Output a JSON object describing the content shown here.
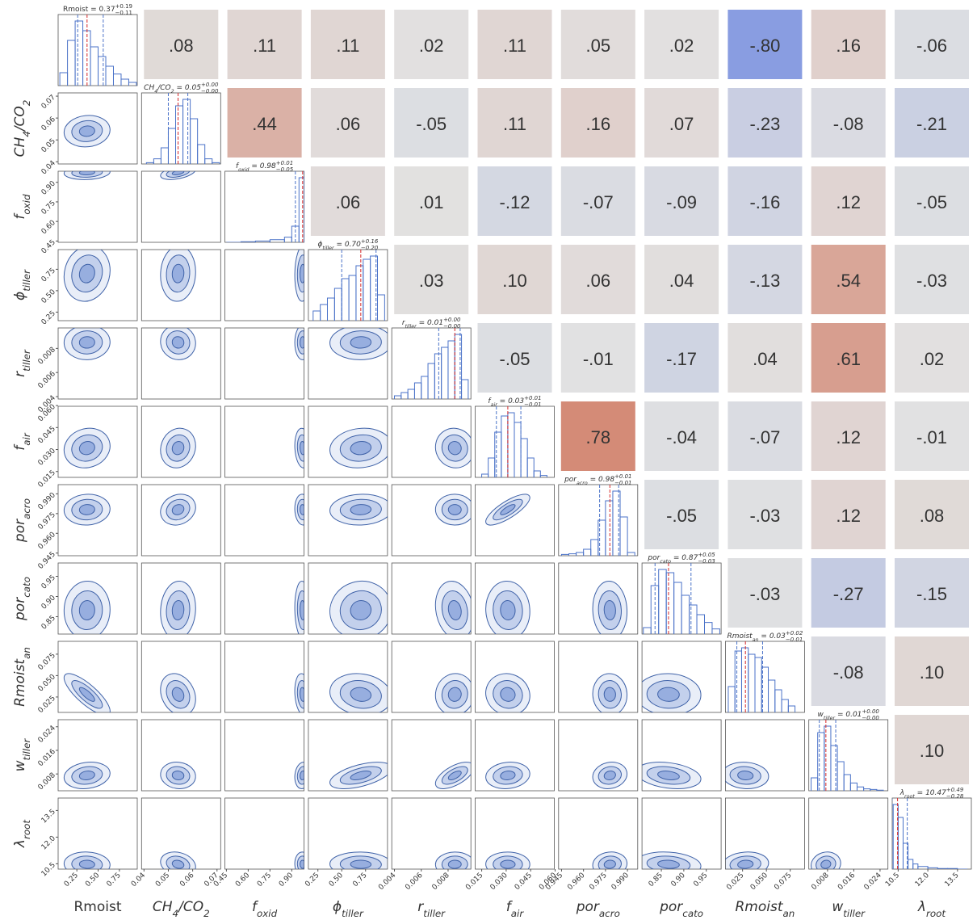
{
  "chart_data": {
    "type": "corner",
    "equals": " = ",
    "colormap": [
      "#5a78dc",
      "#dddddd",
      "#c85a3c"
    ],
    "hist_ylim": [
      0,
      110
    ],
    "line_color": "#4a72c8",
    "median_color": "#d62728",
    "parameters": [
      {
        "label": [
          {
            "t": "Rmoist"
          }
        ],
        "italic": false,
        "median": 0.37,
        "median_label": "0.37",
        "plus": 0.19,
        "plus_label": "+0.19",
        "minus": 0.11,
        "minus_label": "−0.11",
        "xlim": [
          0.03,
          0.96
        ],
        "ticks": [
          0.25,
          {
            "value": 0.5,
            "label": "0.50"
          },
          0.75
        ],
        "bins": [
          0.05,
          0.14,
          0.23,
          0.32,
          0.41,
          0.5,
          0.59,
          0.68,
          0.77,
          0.86,
          0.95
        ],
        "counts": [
          20,
          70,
          100,
          85,
          60,
          45,
          30,
          18,
          10,
          5
        ]
      },
      {
        "label": [
          {
            "t": "CH"
          },
          {
            "sub": "4"
          },
          {
            "t": "/CO"
          },
          {
            "sub": "2"
          }
        ],
        "italic": true,
        "median": 0.054,
        "median_label": "0.05",
        "plus": 0.004,
        "plus_label": "+0.00",
        "minus": 0.004,
        "minus_label": "−0.00",
        "xlim": [
          0.039,
          0.0715
        ],
        "ticks": [
          0.04,
          0.05,
          0.06,
          0.07
        ],
        "bins": [
          0.041,
          0.044,
          0.047,
          0.05,
          0.053,
          0.056,
          0.059,
          0.062,
          0.065,
          0.068,
          0.071
        ],
        "counts": [
          2,
          8,
          25,
          55,
          90,
          100,
          70,
          30,
          8,
          2
        ]
      },
      {
        "label": [
          {
            "t": "f"
          },
          {
            "sub": "oxid"
          }
        ],
        "italic": true,
        "median": 0.975,
        "median_label": "0.98",
        "plus": 0.01,
        "plus_label": "+0.01",
        "minus": 0.05,
        "minus_label": "−0.05",
        "xlim": [
          0.44,
          0.985
        ],
        "ticks": [
          0.45,
          {
            "value": 0.6,
            "label": "0.60"
          },
          0.75,
          {
            "value": 0.9,
            "label": "0.90"
          }
        ],
        "bins": [
          0.45,
          0.55,
          0.65,
          0.75,
          0.85,
          0.9,
          0.95,
          0.985
        ],
        "counts": [
          0,
          1,
          2,
          4,
          8,
          25,
          100
        ]
      },
      {
        "label": [
          {
            "t": "ϕ"
          },
          {
            "sub": "tiller"
          }
        ],
        "italic": true,
        "median": 0.7,
        "median_label": "0.70",
        "plus": 0.16,
        "plus_label": "+0.16",
        "minus": 0.2,
        "minus_label": "−0.20",
        "xlim": [
          0.15,
          0.98
        ],
        "ticks": [
          0.25,
          {
            "value": 0.5,
            "label": "0.50"
          },
          0.75
        ],
        "bins": [
          0.2,
          0.275,
          0.35,
          0.425,
          0.5,
          0.575,
          0.65,
          0.725,
          0.8,
          0.875,
          0.95
        ],
        "counts": [
          15,
          25,
          35,
          50,
          65,
          70,
          85,
          95,
          100,
          40
        ]
      },
      {
        "label": [
          {
            "t": "r"
          },
          {
            "sub": "tiller"
          }
        ],
        "italic": true,
        "median": 0.0085,
        "median_label": "0.01",
        "plus": 0.0004,
        "plus_label": "+0.00",
        "minus": 0.0012,
        "minus_label": "−0.00",
        "xlim": [
          0.0038,
          0.0097
        ],
        "ticks": [
          0.004,
          0.006,
          0.008
        ],
        "bins": [
          0.004,
          0.0045,
          0.005,
          0.0055,
          0.006,
          0.0065,
          0.007,
          0.0075,
          0.008,
          0.0085,
          0.009,
          0.0095
        ],
        "counts": [
          5,
          10,
          15,
          25,
          35,
          55,
          70,
          80,
          90,
          100,
          30
        ]
      },
      {
        "label": [
          {
            "t": "f"
          },
          {
            "sub": "air"
          }
        ],
        "italic": true,
        "median": 0.031,
        "median_label": "0.03",
        "plus": 0.008,
        "plus_label": "+0.01",
        "minus": 0.007,
        "minus_label": "−0.01",
        "xlim": [
          0.011,
          0.0595
        ],
        "ticks": [
          0.015,
          {
            "value": 0.03,
            "label": "0.030"
          },
          0.045,
          {
            "value": 0.06,
            "label": "0.060"
          }
        ],
        "bins": [
          0.015,
          0.019,
          0.023,
          0.027,
          0.031,
          0.035,
          0.039,
          0.043,
          0.047,
          0.051,
          0.055
        ],
        "counts": [
          5,
          30,
          70,
          95,
          100,
          85,
          60,
          30,
          10,
          3
        ]
      },
      {
        "label": [
          {
            "t": "por"
          },
          {
            "sub": "acro"
          }
        ],
        "italic": true,
        "median": 0.978,
        "median_label": "0.98",
        "plus": 0.006,
        "plus_label": "+0.01",
        "minus": 0.007,
        "minus_label": "−0.01",
        "xlim": [
          0.943,
          0.997
        ],
        "ticks": [
          0.945,
          {
            "value": 0.96,
            "label": "0.960"
          },
          0.975,
          {
            "value": 0.99,
            "label": "0.990"
          }
        ],
        "bins": [
          0.945,
          0.95,
          0.955,
          0.96,
          0.965,
          0.97,
          0.975,
          0.98,
          0.985,
          0.99,
          0.995
        ],
        "counts": [
          2,
          3,
          5,
          10,
          25,
          55,
          85,
          100,
          60,
          5
        ]
      },
      {
        "label": [
          {
            "t": "por"
          },
          {
            "sub": "cato"
          }
        ],
        "italic": true,
        "median": 0.866,
        "median_label": "0.87",
        "plus": 0.05,
        "plus_label": "+0.05",
        "minus": 0.03,
        "minus_label": "−0.03",
        "xlim": [
          0.807,
          0.983
        ],
        "ticks": [
          0.85,
          {
            "value": 0.9,
            "label": "0.90"
          },
          0.95
        ],
        "bins": [
          0.81,
          0.827,
          0.844,
          0.861,
          0.878,
          0.895,
          0.912,
          0.929,
          0.946,
          0.963,
          0.98
        ],
        "counts": [
          10,
          75,
          100,
          95,
          80,
          60,
          45,
          30,
          18,
          8
        ]
      },
      {
        "label": [
          {
            "t": "Rmoist"
          },
          {
            "sub": "an"
          }
        ],
        "italic": true,
        "median": 0.028,
        "median_label": "0.03",
        "plus": 0.018,
        "plus_label": "+0.02",
        "minus": 0.009,
        "minus_label": "−0.01",
        "xlim": [
          0.007,
          0.09
        ],
        "ticks": [
          0.025,
          {
            "value": 0.05,
            "label": "0.050"
          },
          0.075
        ],
        "bins": [
          0.01,
          0.017,
          0.024,
          0.031,
          0.038,
          0.045,
          0.052,
          0.059,
          0.066,
          0.073,
          0.08
        ],
        "counts": [
          40,
          95,
          100,
          90,
          85,
          70,
          50,
          35,
          20,
          10
        ]
      },
      {
        "label": [
          {
            "t": "w"
          },
          {
            "sub": "tiller"
          }
        ],
        "italic": true,
        "median": 0.0075,
        "median_label": "0.01",
        "plus": 0.003,
        "plus_label": "+0.00",
        "minus": 0.002,
        "minus_label": "−0.00",
        "xlim": [
          0.0023,
          0.0264
        ],
        "ticks": [
          0.008,
          0.016,
          0.024
        ],
        "bins": [
          0.003,
          0.005,
          0.007,
          0.009,
          0.011,
          0.013,
          0.015,
          0.017,
          0.019,
          0.021,
          0.023,
          0.025
        ],
        "counts": [
          20,
          90,
          100,
          70,
          45,
          25,
          12,
          6,
          3,
          2,
          1
        ]
      },
      {
        "label": [
          {
            "t": "λ"
          },
          {
            "sub": "root"
          }
        ],
        "italic": true,
        "median": 10.47,
        "median_label": "10.47",
        "plus": 0.49,
        "plus_label": "+0.49",
        "minus": 0.28,
        "minus_label": "−0.28",
        "xlim": [
          10.2,
          14.2
        ],
        "ticks": [
          10.5,
          {
            "value": 12,
            "label": "12.0"
          },
          13.5
        ],
        "bins": [
          10.25,
          10.5,
          10.75,
          11,
          11.25,
          11.5,
          12,
          12.5,
          13,
          13.5,
          14
        ],
        "counts": [
          100,
          80,
          40,
          15,
          8,
          4,
          2,
          1,
          1,
          0
        ]
      }
    ],
    "correlations": [
      {
        "values": [
          0.08,
          0.11,
          0.11,
          0.02,
          0.11,
          0.05,
          0.02,
          -0.8,
          0.16,
          -0.06
        ],
        "value_labels": [
          ".08",
          ".11",
          ".11",
          ".02",
          ".11",
          ".05",
          ".02",
          "-.80",
          ".16",
          "-.06"
        ]
      },
      {
        "values": [
          0.44,
          0.06,
          -0.05,
          0.11,
          0.16,
          0.07,
          -0.23,
          -0.08,
          -0.21
        ],
        "value_labels": [
          ".44",
          ".06",
          "-.05",
          ".11",
          ".16",
          ".07",
          "-.23",
          "-.08",
          "-.21"
        ]
      },
      {
        "values": [
          0.06,
          0.01,
          -0.12,
          -0.07,
          -0.09,
          -0.16,
          0.12,
          -0.05
        ],
        "value_labels": [
          ".06",
          ".01",
          "-.12",
          "-.07",
          "-.09",
          "-.16",
          ".12",
          "-.05"
        ]
      },
      {
        "values": [
          0.03,
          0.1,
          0.06,
          0.04,
          -0.13,
          0.54,
          -0.03
        ],
        "value_labels": [
          ".03",
          ".10",
          ".06",
          ".04",
          "-.13",
          ".54",
          "-.03"
        ]
      },
      {
        "values": [
          -0.05,
          -0.01,
          -0.17,
          0.04,
          0.61,
          0.02
        ],
        "value_labels": [
          "-.05",
          "-.01",
          "-.17",
          ".04",
          ".61",
          ".02"
        ]
      },
      {
        "values": [
          0.78,
          -0.04,
          -0.07,
          0.12,
          -0.01
        ],
        "value_labels": [
          ".78",
          "-.04",
          "-.07",
          ".12",
          "-.01"
        ]
      },
      {
        "values": [
          -0.05,
          -0.03,
          0.12,
          0.08
        ],
        "value_labels": [
          "-.05",
          "-.03",
          ".12",
          ".08"
        ]
      },
      {
        "values": [
          -0.03,
          -0.27,
          -0.15
        ],
        "value_labels": [
          "-.03",
          "-.27",
          "-.15"
        ]
      },
      {
        "values": [
          -0.08,
          0.1
        ],
        "value_labels": [
          "-.08",
          ".10"
        ]
      },
      {
        "values": [
          0.1
        ],
        "value_labels": [
          ".10"
        ]
      }
    ]
  }
}
